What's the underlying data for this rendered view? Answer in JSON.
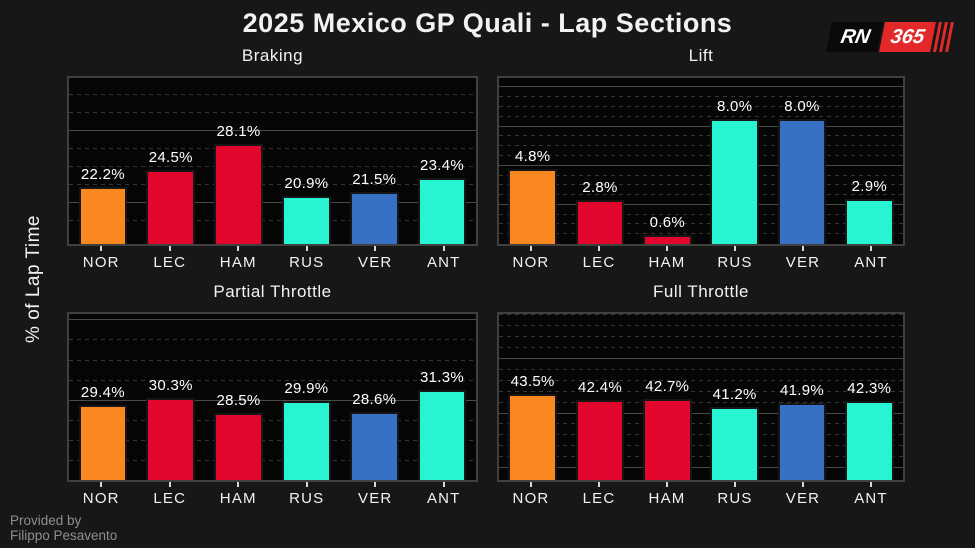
{
  "page": {
    "title": "2025 Mexico GP Quali - Lap Sections",
    "ylabel": "% of Lap Time",
    "credit": {
      "line1": "Provided by",
      "line2": "Filippo Pesavento"
    },
    "logo": {
      "left_text": "RN",
      "right_text": "365"
    }
  },
  "colors": {
    "background": "#171717",
    "plot_background": "#060606",
    "axes_border": "#404040",
    "grid_major": "#4a4a4a",
    "grid_minor": "#363636",
    "text": "#f2f2f2",
    "credit_text": "#8f8f8f",
    "logo_red": "#E3282A",
    "team_mclaren": "#F98820",
    "team_ferrari": "#E2062C",
    "team_mercedes": "#27F4D2",
    "team_redbull": "#3671C6"
  },
  "drivers": [
    "NOR",
    "LEC",
    "HAM",
    "RUS",
    "VER",
    "ANT"
  ],
  "chart_data": [
    {
      "type": "bar",
      "title": "Braking",
      "categories": [
        "NOR",
        "LEC",
        "HAM",
        "RUS",
        "VER",
        "ANT"
      ],
      "values": [
        22.2,
        24.5,
        28.1,
        20.9,
        21.5,
        23.4
      ],
      "labels": [
        "22.2%",
        "24.5%",
        "28.1%",
        "20.9%",
        "21.5%",
        "23.4%"
      ],
      "bar_colors": [
        "#F98820",
        "#E2062C",
        "#E2062C",
        "#27F4D2",
        "#3671C6",
        "#27F4D2"
      ],
      "ylabel": "% of Lap Time",
      "ylim": [
        14.3,
        37.3
      ],
      "grid": "on",
      "grid_major": [
        20,
        30
      ],
      "grid_minor_step": 2.5
    },
    {
      "type": "bar",
      "title": "Lift",
      "categories": [
        "NOR",
        "LEC",
        "HAM",
        "RUS",
        "VER",
        "ANT"
      ],
      "values": [
        4.8,
        2.8,
        0.6,
        8.0,
        8.0,
        2.9
      ],
      "labels": [
        "4.8%",
        "2.8%",
        "0.6%",
        "8.0%",
        "8.0%",
        "2.9%"
      ],
      "bar_colors": [
        "#F98820",
        "#E2062C",
        "#E2062C",
        "#27F4D2",
        "#3671C6",
        "#27F4D2"
      ],
      "ylabel": "% of Lap Time",
      "ylim": [
        0,
        10.6
      ],
      "grid": "on",
      "grid_major": [
        2.5,
        5.0,
        7.5,
        10.0
      ],
      "grid_minor_step": 0.625
    },
    {
      "type": "bar",
      "title": "Partial Throttle",
      "categories": [
        "NOR",
        "LEC",
        "HAM",
        "RUS",
        "VER",
        "ANT"
      ],
      "values": [
        29.4,
        30.3,
        28.5,
        29.9,
        28.6,
        31.3
      ],
      "labels": [
        "29.4%",
        "30.3%",
        "28.5%",
        "29.9%",
        "28.6%",
        "31.3%"
      ],
      "bar_colors": [
        "#F98820",
        "#E2062C",
        "#E2062C",
        "#27F4D2",
        "#3671C6",
        "#27F4D2"
      ],
      "ylabel": "% of Lap Time",
      "ylim": [
        20.1,
        40.8
      ],
      "grid": "on",
      "grid_major": [
        30,
        40
      ],
      "grid_minor_step": 2.5
    },
    {
      "type": "bar",
      "title": "Full Throttle",
      "categories": [
        "NOR",
        "LEC",
        "HAM",
        "RUS",
        "VER",
        "ANT"
      ],
      "values": [
        43.5,
        42.4,
        42.7,
        41.2,
        41.9,
        42.3
      ],
      "labels": [
        "43.5%",
        "42.4%",
        "42.7%",
        "41.2%",
        "41.9%",
        "42.3%"
      ],
      "bar_colors": [
        "#F98820",
        "#E2062C",
        "#E2062C",
        "#27F4D2",
        "#3671C6",
        "#27F4D2"
      ],
      "ylabel": "% of Lap Time",
      "ylim": [
        27.9,
        58.1
      ],
      "grid": "on",
      "grid_major": [
        30,
        40,
        50
      ],
      "grid_minor_step": 2
    }
  ]
}
